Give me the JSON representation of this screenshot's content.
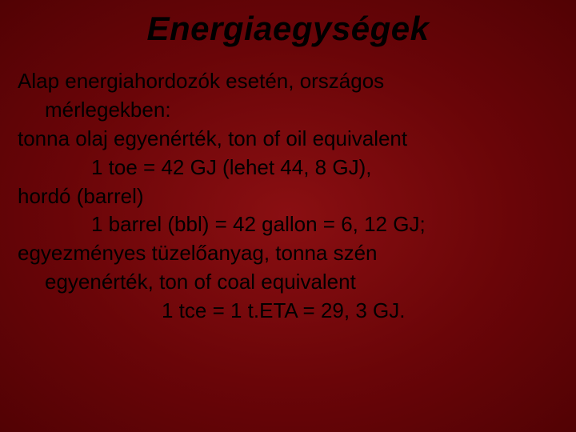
{
  "slide": {
    "title": "Energiaegységek",
    "background_center_color": "#8a0f12",
    "background_outer_color": "#520204",
    "title_color": "#000000",
    "title_fontsize": 42,
    "body_color": "#000000",
    "body_fontsize": 26,
    "lines": {
      "l1": "Alap energiahordozók esetén, országos",
      "l2": "mérlegekben:",
      "l3": "tonna olaj egyenérték, ton of oil equivalent",
      "l4": "1 toe = 42 GJ (lehet 44, 8 GJ),",
      "l5": "hordó (barrel)",
      "l6": "1 barrel (bbl) = 42 gallon = 6, 12 GJ;",
      "l7": "egyezményes tüzelőanyag, tonna szén",
      "l8": "egyenérték, ton of coal equivalent",
      "l9": "1 tce = 1 t.ETA = 29, 3 GJ."
    }
  }
}
